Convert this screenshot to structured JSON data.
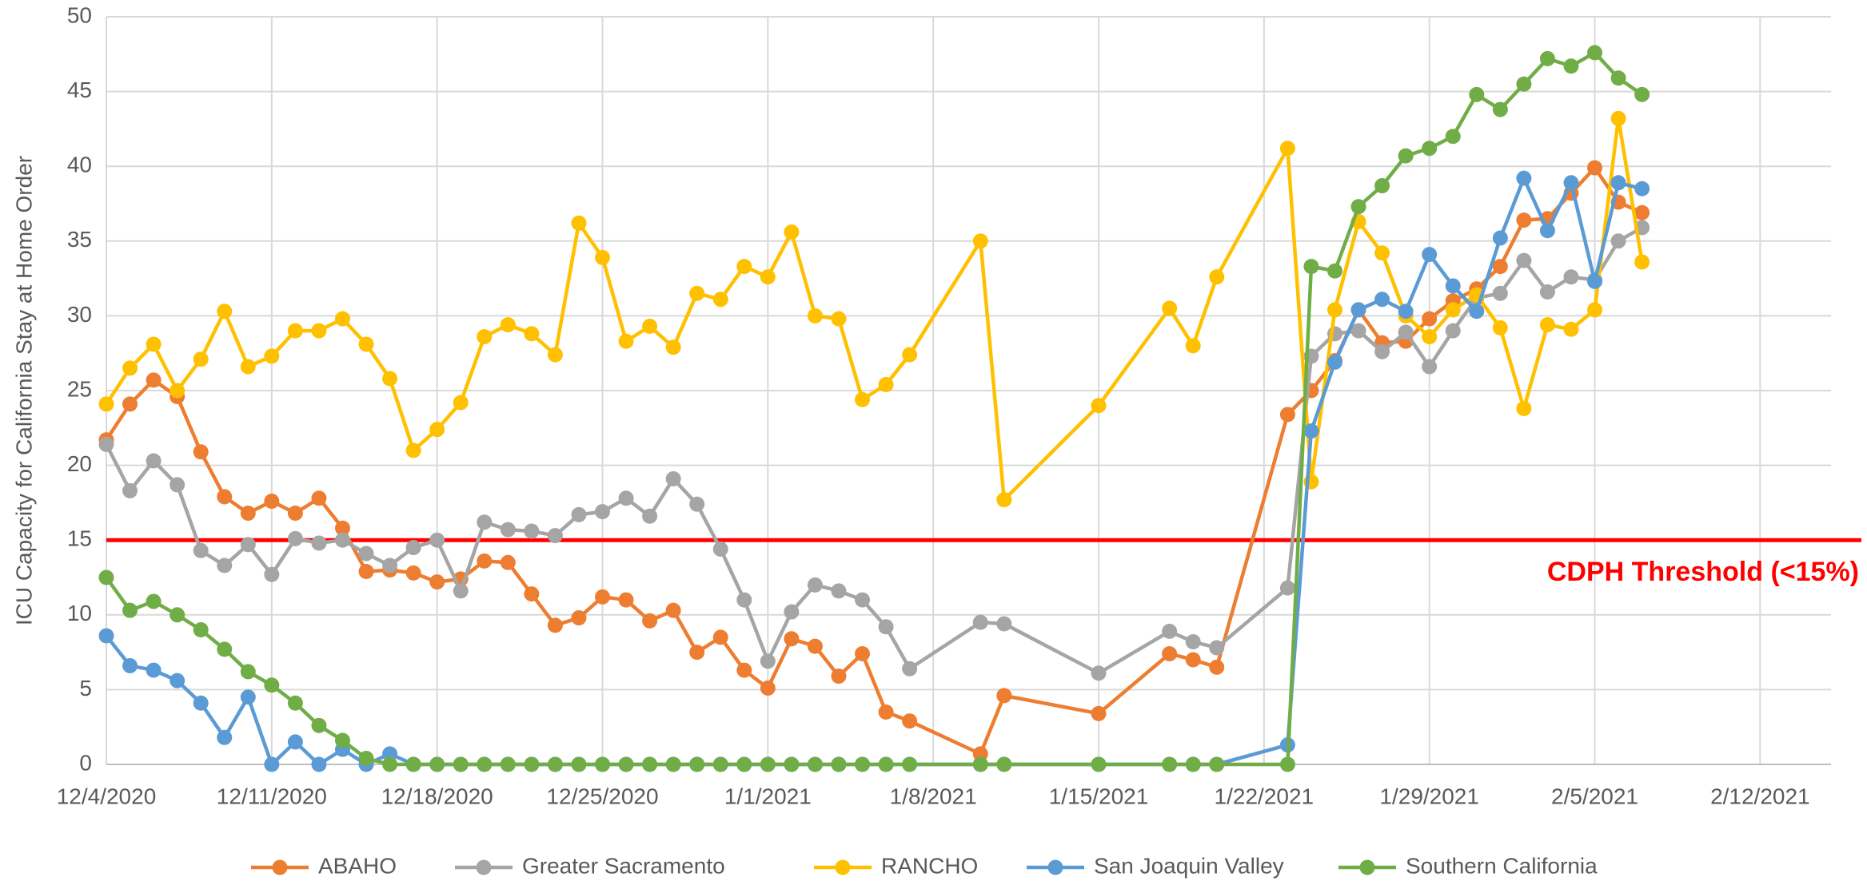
{
  "chart_data": {
    "type": "line",
    "y_label": "ICU Capacity for California Stay at Home Order",
    "x": [
      "12/4/2020",
      "12/5/2020",
      "12/6/2020",
      "12/7/2020",
      "12/8/2020",
      "12/9/2020",
      "12/10/2020",
      "12/11/2020",
      "12/12/2020",
      "12/13/2020",
      "12/14/2020",
      "12/15/2020",
      "12/16/2020",
      "12/17/2020",
      "12/18/2020",
      "12/19/2020",
      "12/20/2020",
      "12/21/2020",
      "12/22/2020",
      "12/23/2020",
      "12/24/2020",
      "12/25/2020",
      "12/26/2020",
      "12/27/2020",
      "12/28/2020",
      "12/29/2020",
      "12/30/2020",
      "12/31/2020",
      "1/1/2021",
      "1/2/2021",
      "1/3/2021",
      "1/4/2021",
      "1/5/2021",
      "1/6/2021",
      "1/7/2021",
      "1/10/2021",
      "1/11/2021",
      "1/15/2021",
      "1/18/2021",
      "1/19/2021",
      "1/20/2021",
      "1/23/2021",
      "1/24/2021",
      "1/25/2021",
      "1/26/2021",
      "1/27/2021",
      "1/28/2021",
      "1/29/2021",
      "1/30/2021",
      "1/31/2021",
      "2/1/2021",
      "2/2/2021",
      "2/3/2021",
      "2/4/2021",
      "2/5/2021",
      "2/6/2021",
      "2/7/2021"
    ],
    "series": [
      {
        "name": "ABAHO",
        "color": "#ED7D31",
        "values": [
          21.7,
          24.1,
          25.7,
          24.6,
          20.9,
          17.9,
          16.8,
          17.6,
          16.8,
          17.8,
          15.8,
          12.9,
          13.0,
          12.8,
          12.2,
          12.4,
          13.6,
          13.5,
          11.4,
          9.3,
          9.8,
          11.2,
          11.0,
          9.6,
          10.3,
          7.5,
          8.5,
          6.3,
          5.1,
          8.4,
          7.9,
          5.9,
          7.4,
          3.5,
          2.9,
          0.7,
          4.6,
          3.4,
          7.4,
          7.0,
          6.5,
          23.4,
          25.0,
          27.0,
          30.4,
          28.2,
          28.3,
          29.8,
          31.0,
          31.8,
          33.3,
          36.4,
          36.5,
          38.2,
          39.9,
          37.6,
          36.9
        ]
      },
      {
        "name": "Greater Sacramento",
        "color": "#A5A5A5",
        "values": [
          21.4,
          18.3,
          20.3,
          18.7,
          14.3,
          13.3,
          14.7,
          12.7,
          15.1,
          14.8,
          15.0,
          14.1,
          13.3,
          14.5,
          15.0,
          11.6,
          16.2,
          15.7,
          15.6,
          15.3,
          16.7,
          16.9,
          17.8,
          16.6,
          19.1,
          17.4,
          14.4,
          11.0,
          6.9,
          10.2,
          12.0,
          11.6,
          11.0,
          9.2,
          6.4,
          9.5,
          9.4,
          6.1,
          8.9,
          8.2,
          7.8,
          11.8,
          27.3,
          28.8,
          29.0,
          27.6,
          28.9,
          26.6,
          29.0,
          31.2,
          31.5,
          33.7,
          31.6,
          32.6,
          32.4,
          35.0,
          35.9
        ]
      },
      {
        "name": "RANCHO",
        "color": "#FFC000",
        "values": [
          24.1,
          26.5,
          28.1,
          25.0,
          27.1,
          30.3,
          26.6,
          27.3,
          29.0,
          29.0,
          29.8,
          28.1,
          25.8,
          21.0,
          22.4,
          24.2,
          28.6,
          29.4,
          28.8,
          27.4,
          36.2,
          33.9,
          28.3,
          29.3,
          27.9,
          31.5,
          31.1,
          33.3,
          32.6,
          35.6,
          30.0,
          29.8,
          24.4,
          25.4,
          27.4,
          35.0,
          17.7,
          24.0,
          30.5,
          28.0,
          32.6,
          41.2,
          18.9,
          30.4,
          36.3,
          34.2,
          30.0,
          28.6,
          30.4,
          31.4,
          29.2,
          23.8,
          29.4,
          29.1,
          30.4,
          43.2,
          33.6
        ]
      },
      {
        "name": "San Joaquin Valley",
        "color": "#5B9BD5",
        "values": [
          8.6,
          6.6,
          6.3,
          5.6,
          4.1,
          1.8,
          4.5,
          0,
          1.5,
          0,
          1.0,
          0,
          0.7,
          0,
          0,
          0,
          0,
          0,
          0,
          0,
          0,
          0,
          0,
          0,
          0,
          0,
          0,
          0,
          0,
          0,
          0,
          0,
          0,
          0,
          0,
          0,
          0,
          0,
          0,
          0,
          0,
          1.3,
          22.3,
          26.9,
          30.4,
          31.1,
          30.3,
          34.1,
          32.0,
          30.3,
          35.2,
          39.2,
          35.7,
          38.9,
          32.3,
          38.9,
          38.5
        ]
      },
      {
        "name": "Southern California",
        "color": "#70AD47",
        "values": [
          12.5,
          10.3,
          10.9,
          10.0,
          9.0,
          7.7,
          6.2,
          5.3,
          4.1,
          2.6,
          1.6,
          0.4,
          0,
          0,
          0,
          0,
          0,
          0,
          0,
          0,
          0,
          0,
          0,
          0,
          0,
          0,
          0,
          0,
          0,
          0,
          0,
          0,
          0,
          0,
          0,
          0,
          0,
          0,
          0,
          0,
          0,
          0,
          33.3,
          33.0,
          37.3,
          38.7,
          40.7,
          41.2,
          42.0,
          44.8,
          43.8,
          45.5,
          47.2,
          46.7,
          47.6,
          45.9,
          44.8
        ]
      }
    ],
    "xlim": [
      "12/4/2020",
      "2/15/2021"
    ],
    "xticks": [
      "12/4/2020",
      "12/11/2020",
      "12/18/2020",
      "12/25/2020",
      "1/1/2021",
      "1/8/2021",
      "1/15/2021",
      "1/22/2021",
      "1/29/2021",
      "2/5/2021",
      "2/12/2021"
    ],
    "ylim": [
      0,
      50
    ],
    "yticks": [
      0,
      5,
      10,
      15,
      20,
      25,
      30,
      35,
      40,
      45,
      50
    ],
    "grid": true,
    "legend": "bottom",
    "threshold": {
      "value": 15,
      "label": "CDPH Threshold (<15%)",
      "color": "#FF0000"
    }
  }
}
